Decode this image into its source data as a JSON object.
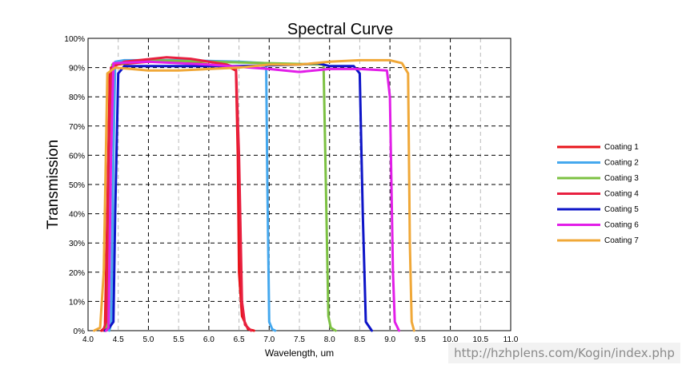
{
  "chart_data": {
    "type": "line",
    "title": "Spectral Curve",
    "xlabel": "Wavelength, um",
    "ylabel": "Transmission",
    "xlim": [
      4.0,
      11.0
    ],
    "ylim": [
      0,
      100
    ],
    "x_ticks": [
      "4.0",
      "4.5",
      "5.0",
      "5.5",
      "6.0",
      "6.5",
      "7.0",
      "7.5",
      "8.0",
      "8.5",
      "9.0",
      "9.5",
      "10.0",
      "10.5",
      "11.0"
    ],
    "y_ticks": [
      "0%",
      "10%",
      "20%",
      "30%",
      "40%",
      "50%",
      "60%",
      "70%",
      "80%",
      "90%",
      "100%"
    ],
    "y_tick_values": [
      0,
      10,
      20,
      30,
      40,
      50,
      60,
      70,
      80,
      90,
      100
    ],
    "grid": true,
    "legend_position": "right",
    "series": [
      {
        "name": "Coating 1",
        "color": "#e8141b",
        "points": [
          [
            4.22,
            0
          ],
          [
            4.28,
            1
          ],
          [
            4.32,
            40
          ],
          [
            4.36,
            88
          ],
          [
            4.45,
            91
          ],
          [
            5.0,
            92
          ],
          [
            5.5,
            92
          ],
          [
            6.0,
            91
          ],
          [
            6.3,
            90.5
          ],
          [
            6.45,
            89
          ],
          [
            6.48,
            60
          ],
          [
            6.5,
            20
          ],
          [
            6.55,
            5
          ],
          [
            6.65,
            0.5
          ],
          [
            6.75,
            0
          ]
        ]
      },
      {
        "name": "Coating 2",
        "color": "#45a8ee",
        "points": [
          [
            4.35,
            0
          ],
          [
            4.38,
            2
          ],
          [
            4.42,
            60
          ],
          [
            4.45,
            92
          ],
          [
            4.6,
            92.5
          ],
          [
            5.5,
            92.5
          ],
          [
            6.5,
            92
          ],
          [
            6.95,
            91.5
          ],
          [
            6.97,
            50
          ],
          [
            7.0,
            3
          ],
          [
            7.05,
            0.5
          ],
          [
            7.1,
            0
          ]
        ]
      },
      {
        "name": "Coating 3",
        "color": "#7cc142",
        "points": [
          [
            4.28,
            0
          ],
          [
            4.32,
            2
          ],
          [
            4.36,
            70
          ],
          [
            4.4,
            91
          ],
          [
            5.0,
            92.5
          ],
          [
            6.0,
            92
          ],
          [
            7.0,
            91.5
          ],
          [
            7.9,
            91
          ],
          [
            7.93,
            60
          ],
          [
            7.98,
            5
          ],
          [
            8.02,
            1
          ],
          [
            8.1,
            0
          ]
        ]
      },
      {
        "name": "Coating 4",
        "color": "#e82040",
        "points": [
          [
            4.25,
            0
          ],
          [
            4.3,
            3
          ],
          [
            4.34,
            60
          ],
          [
            4.38,
            90
          ],
          [
            4.6,
            92
          ],
          [
            5.3,
            93.5
          ],
          [
            5.7,
            93
          ],
          [
            6.3,
            91
          ],
          [
            6.45,
            90
          ],
          [
            6.5,
            60
          ],
          [
            6.55,
            10
          ],
          [
            6.6,
            2
          ],
          [
            6.7,
            0
          ]
        ]
      },
      {
        "name": "Coating 5",
        "color": "#0d14c8",
        "points": [
          [
            4.28,
            0
          ],
          [
            4.35,
            1
          ],
          [
            4.42,
            3
          ],
          [
            4.45,
            40
          ],
          [
            4.5,
            88
          ],
          [
            4.6,
            90.5
          ],
          [
            5.5,
            90.5
          ],
          [
            6.5,
            90.5
          ],
          [
            7.5,
            91
          ],
          [
            7.8,
            91.5
          ],
          [
            8.0,
            90.5
          ],
          [
            8.4,
            90.5
          ],
          [
            8.5,
            88
          ],
          [
            8.55,
            40
          ],
          [
            8.6,
            3
          ],
          [
            8.7,
            0
          ]
        ]
      },
      {
        "name": "Coating 6",
        "color": "#e21ee8",
        "points": [
          [
            4.3,
            0
          ],
          [
            4.34,
            1
          ],
          [
            4.38,
            60
          ],
          [
            4.42,
            91.5
          ],
          [
            5.0,
            92
          ],
          [
            6.0,
            91
          ],
          [
            7.0,
            89.5
          ],
          [
            7.5,
            88.5
          ],
          [
            8.0,
            89.5
          ],
          [
            8.5,
            89.5
          ],
          [
            8.95,
            89
          ],
          [
            9.0,
            80
          ],
          [
            9.05,
            20
          ],
          [
            9.08,
            3
          ],
          [
            9.15,
            0
          ]
        ]
      },
      {
        "name": "Coating 7",
        "color": "#f0a838",
        "points": [
          [
            4.1,
            0
          ],
          [
            4.2,
            1
          ],
          [
            4.26,
            20
          ],
          [
            4.32,
            88
          ],
          [
            4.45,
            90
          ],
          [
            5.0,
            89
          ],
          [
            5.5,
            89
          ],
          [
            6.0,
            89.5
          ],
          [
            6.5,
            90
          ],
          [
            7.0,
            91
          ],
          [
            7.5,
            91
          ],
          [
            8.0,
            92
          ],
          [
            8.5,
            92.5
          ],
          [
            9.0,
            92.5
          ],
          [
            9.2,
            91.5
          ],
          [
            9.3,
            88
          ],
          [
            9.33,
            30
          ],
          [
            9.36,
            3
          ],
          [
            9.4,
            0
          ]
        ]
      }
    ]
  },
  "watermark": "http://hzhplens.com/Kogin/index.php"
}
